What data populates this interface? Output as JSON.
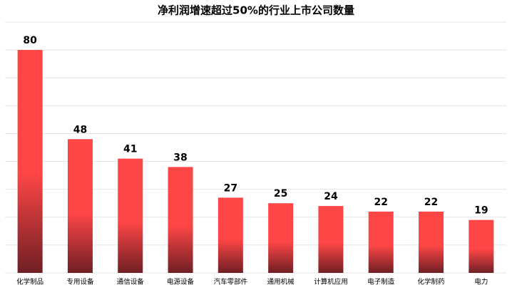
{
  "chart_data": {
    "type": "bar",
    "title": "净利润增速超过50%的行业上市公司数量",
    "categories": [
      "化学制品",
      "专用设备",
      "通信设备",
      "电源设备",
      "汽车零部件",
      "通用机械",
      "计算机应用",
      "电子制造",
      "化学制药",
      "电力"
    ],
    "values": [
      80,
      48,
      41,
      38,
      27,
      25,
      24,
      22,
      22,
      19
    ],
    "color": "#ff4646",
    "gradient_end_color": "#6f1f24",
    "ylim": [
      0,
      90
    ],
    "yticks": [
      0,
      10,
      20,
      30,
      40,
      50,
      60,
      70,
      80,
      90
    ],
    "grid": true
  }
}
